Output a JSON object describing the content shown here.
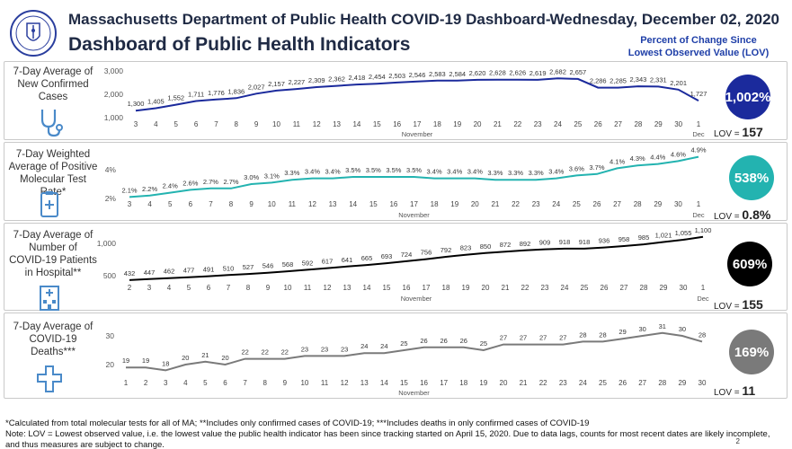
{
  "header": {
    "title_line1": "Massachusetts Department of Public Health COVID-19 Dashboard-",
    "title_line2": "Dashboard of Public Health Indicators",
    "date": "Wednesday, December 02, 2020",
    "percent_header_line1": "Percent of Change Since",
    "percent_header_line2": "Lowest Observed Value (LOV)",
    "seal_icon": "massachusetts-seal-icon"
  },
  "lov_prefix": "LOV = ",
  "month_label": "November",
  "month_end_label": "Dec",
  "panels": [
    {
      "label_lines": [
        "7-Day Average of",
        "New Confirmed",
        "Cases"
      ],
      "icon": "stethoscope-icon",
      "badge_text": "1,002%",
      "lov_value": "157",
      "color": "#1b2a9c",
      "badge_color": "#1b2a9c"
    },
    {
      "label_lines": [
        "7-Day Weighted",
        "Average of Positive",
        "Molecular Test Rate*"
      ],
      "icon": "clipboard-test-icon",
      "badge_text": "538%",
      "lov_value": "0.8%",
      "color": "#23b3b0",
      "badge_color": "#23b3b0"
    },
    {
      "label_lines": [
        "7-Day Average of",
        "Number of",
        "COVID-19 Patients",
        "in Hospital**"
      ],
      "icon": "hospital-icon",
      "badge_text": "609%",
      "lov_value": "155",
      "color": "#000000",
      "badge_color": "#000000"
    },
    {
      "label_lines": [
        "7-Day Average of",
        "COVID-19",
        "Deaths***"
      ],
      "icon": "cross-icon",
      "badge_text": "169%",
      "lov_value": "11",
      "color": "#7a7a7a",
      "badge_color": "#7a7a7a"
    }
  ],
  "chart_data": [
    {
      "type": "line",
      "title": "7-Day Average of New Confirmed Cases",
      "x": [
        "3",
        "4",
        "5",
        "6",
        "7",
        "8",
        "9",
        "10",
        "11",
        "12",
        "13",
        "14",
        "15",
        "16",
        "17",
        "18",
        "19",
        "20",
        "21",
        "22",
        "23",
        "24",
        "25",
        "26",
        "27",
        "28",
        "29",
        "30",
        "1"
      ],
      "values": [
        1300,
        1405,
        1552,
        1711,
        1776,
        1836,
        2027,
        2157,
        2227,
        2309,
        2362,
        2418,
        2454,
        2503,
        2546,
        2583,
        2584,
        2620,
        2628,
        2626,
        2619,
        2682,
        2657,
        2286,
        2285,
        2343,
        2331,
        2201,
        1727
      ],
      "data_labels": [
        "1,300",
        "1,405",
        "1,552",
        "1,711",
        "1,776",
        "1,836",
        "2,027",
        "2,157",
        "2,227",
        "2,309",
        "2,362",
        "2,418",
        "2,454",
        "2,503",
        "2,546",
        "2,583",
        "2,584",
        "2,620",
        "2,628",
        "2,626",
        "2,619",
        "2,682",
        "2,657",
        "2,286",
        "2,285",
        "2,343",
        "2,331",
        "2,201",
        "1,727"
      ],
      "y_ticks": [
        "3,000",
        "2,000",
        "1,000"
      ],
      "y_tick_values": [
        3000,
        2000,
        1000
      ],
      "ylim": [
        1000,
        3000
      ]
    },
    {
      "type": "line",
      "title": "7-Day Weighted Average of Positive Molecular Test Rate*",
      "x": [
        "3",
        "4",
        "5",
        "6",
        "7",
        "8",
        "9",
        "10",
        "11",
        "12",
        "13",
        "14",
        "15",
        "16",
        "17",
        "18",
        "19",
        "20",
        "21",
        "22",
        "23",
        "24",
        "25",
        "26",
        "27",
        "28",
        "29",
        "30",
        "1"
      ],
      "values": [
        2.1,
        2.2,
        2.4,
        2.6,
        2.7,
        2.7,
        3.0,
        3.1,
        3.3,
        3.4,
        3.4,
        3.5,
        3.5,
        3.5,
        3.5,
        3.4,
        3.4,
        3.4,
        3.3,
        3.3,
        3.3,
        3.4,
        3.6,
        3.7,
        4.1,
        4.3,
        4.4,
        4.6,
        4.9
      ],
      "data_labels": [
        "2.1%",
        "2.2%",
        "2.4%",
        "2.6%",
        "2.7%",
        "2.7%",
        "3.0%",
        "3.1%",
        "3.3%",
        "3.4%",
        "3.4%",
        "3.5%",
        "3.5%",
        "3.5%",
        "3.5%",
        "3.4%",
        "3.4%",
        "3.4%",
        "3.3%",
        "3.3%",
        "3.3%",
        "3.4%",
        "3.6%",
        "3.7%",
        "4.1%",
        "4.3%",
        "4.4%",
        "4.6%",
        "4.9%"
      ],
      "y_ticks": [
        "4%",
        "2%"
      ],
      "y_tick_values": [
        4,
        2
      ],
      "ylim": [
        2,
        4
      ]
    },
    {
      "type": "line",
      "title": "7-Day Average of Number of COVID-19 Patients in Hospital**",
      "x": [
        "2",
        "3",
        "4",
        "5",
        "6",
        "7",
        "8",
        "9",
        "10",
        "11",
        "12",
        "13",
        "14",
        "15",
        "16",
        "17",
        "18",
        "19",
        "20",
        "21",
        "22",
        "23",
        "24",
        "25",
        "26",
        "27",
        "28",
        "29",
        "30",
        "1"
      ],
      "values": [
        432,
        447,
        462,
        477,
        491,
        510,
        527,
        546,
        568,
        592,
        617,
        641,
        665,
        693,
        724,
        756,
        792,
        823,
        850,
        872,
        892,
        909,
        918,
        918,
        936,
        958,
        985,
        1021,
        1055,
        1100
      ],
      "data_labels": [
        "432",
        "447",
        "462",
        "477",
        "491",
        "510",
        "527",
        "546",
        "568",
        "592",
        "617",
        "641",
        "665",
        "693",
        "724",
        "756",
        "792",
        "823",
        "850",
        "872",
        "892",
        "909",
        "918",
        "918",
        "936",
        "958",
        "985",
        "1,021",
        "1,055",
        "1,100"
      ],
      "y_ticks": [
        "1,000",
        "500"
      ],
      "y_tick_values": [
        1000,
        500
      ],
      "ylim": [
        500,
        1000
      ]
    },
    {
      "type": "line",
      "title": "7-Day Average of COVID-19 Deaths***",
      "x": [
        "1",
        "2",
        "3",
        "4",
        "5",
        "6",
        "7",
        "8",
        "9",
        "10",
        "11",
        "12",
        "13",
        "14",
        "15",
        "16",
        "17",
        "18",
        "19",
        "20",
        "21",
        "22",
        "23",
        "24",
        "25",
        "26",
        "27",
        "28",
        "29",
        "30"
      ],
      "values": [
        19,
        19,
        18,
        20,
        21,
        20,
        22,
        22,
        22,
        23,
        23,
        23,
        24,
        24,
        25,
        26,
        26,
        26,
        25,
        27,
        27,
        27,
        27,
        28,
        28,
        29,
        30,
        31,
        30,
        28
      ],
      "data_labels": [
        "19",
        "19",
        "18",
        "20",
        "21",
        "20",
        "22",
        "22",
        "22",
        "23",
        "23",
        "23",
        "24",
        "24",
        "25",
        "26",
        "26",
        "26",
        "25",
        "27",
        "27",
        "27",
        "27",
        "28",
        "28",
        "29",
        "30",
        "31",
        "30",
        "28"
      ],
      "y_ticks": [
        "30",
        "20"
      ],
      "y_tick_values": [
        30,
        20
      ],
      "ylim": [
        20,
        30
      ]
    }
  ],
  "footnotes": {
    "line1": "*Calculated from total molecular tests for all of MA; **Includes only confirmed cases of COVID-19; ***Includes deaths in only confirmed cases of COVID-19",
    "line2": "Note:  LOV = Lowest observed value, i.e. the lowest value the public health indicator has been since tracking started on April 15, 2020. Due to data lags, counts for most recent dates are likely incomplete, and thus measures are subject to change.",
    "page_number": "2"
  }
}
